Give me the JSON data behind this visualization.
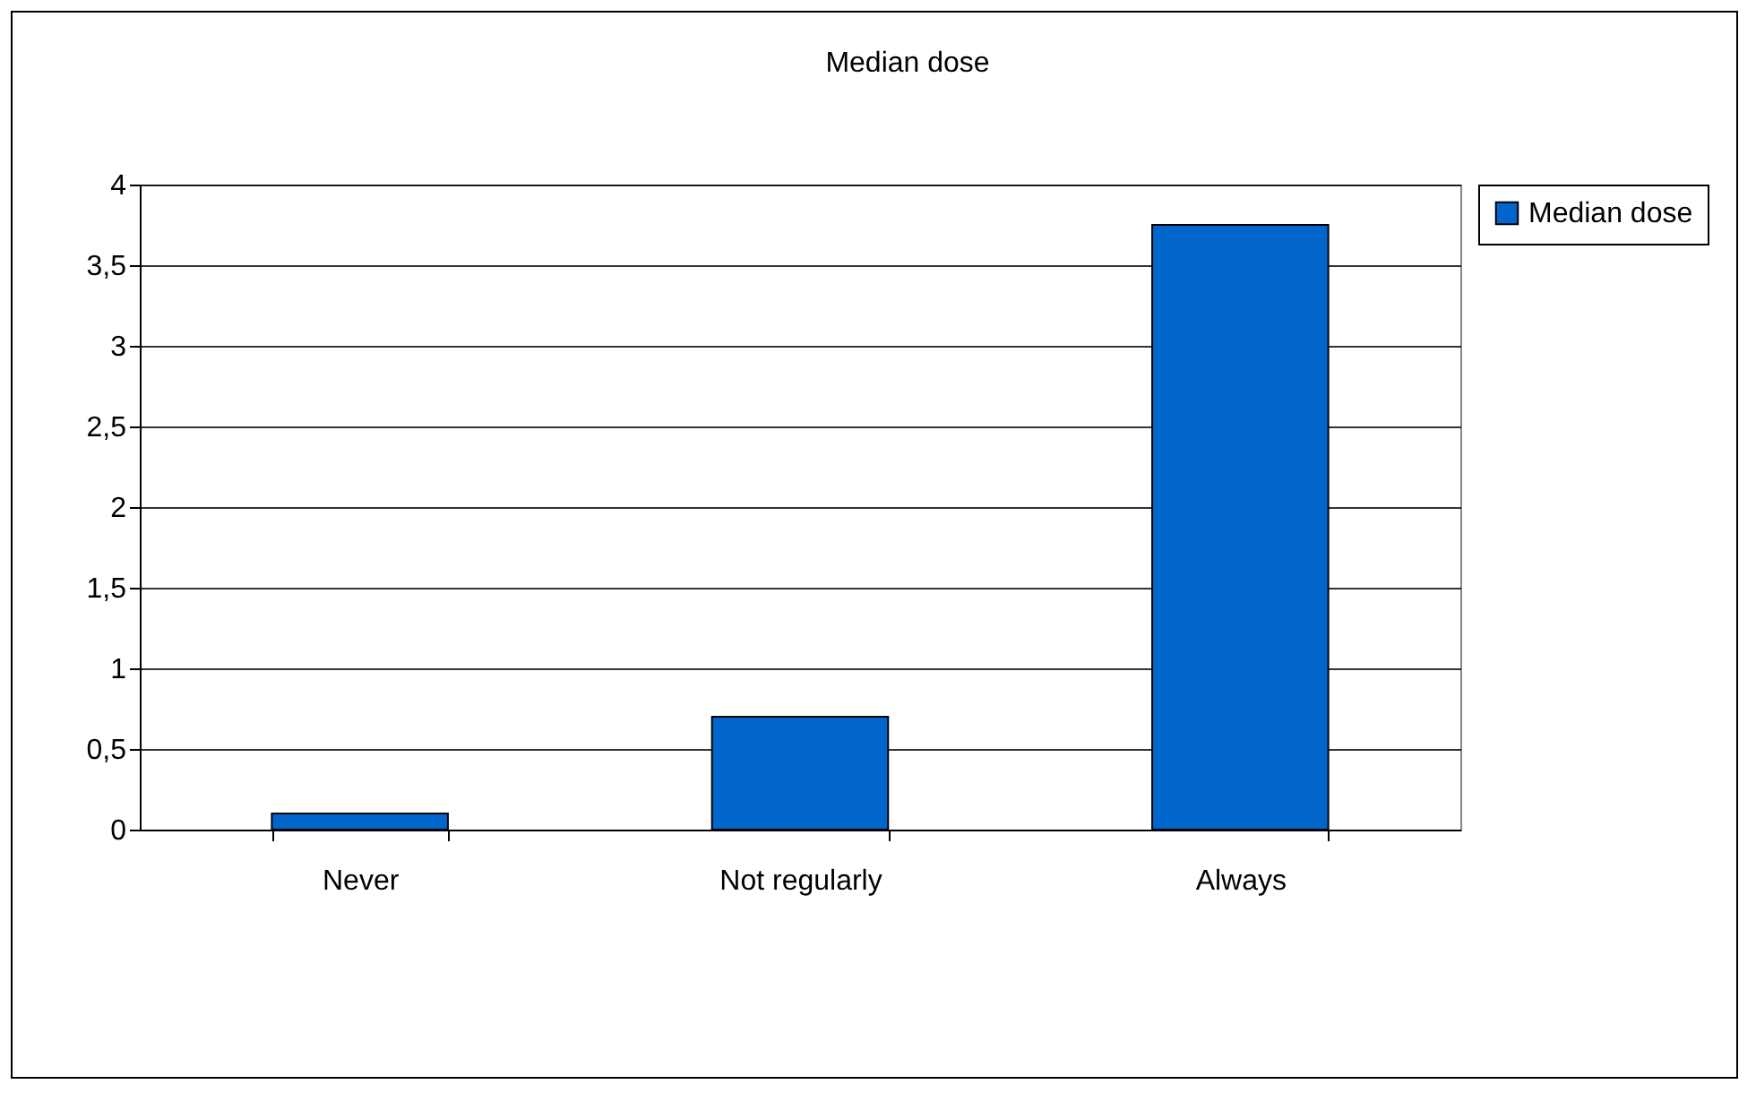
{
  "chart_data": {
    "type": "bar",
    "title": "Median dose",
    "categories": [
      "Never",
      "Not regularly",
      "Always"
    ],
    "series": [
      {
        "name": "Median dose",
        "color": "#0066cc",
        "values": [
          0.1,
          0.7,
          3.75
        ]
      }
    ],
    "ylim": [
      0,
      4
    ],
    "yticks": [
      0,
      {
        "value": 0.5,
        "label": "0,5"
      },
      1,
      {
        "value": 1.5,
        "label": "1,5"
      },
      2,
      {
        "value": 2.5,
        "label": "2,5"
      },
      3,
      {
        "value": 3.5,
        "label": "3,5"
      },
      4
    ],
    "grid": "y",
    "legend": "right"
  }
}
